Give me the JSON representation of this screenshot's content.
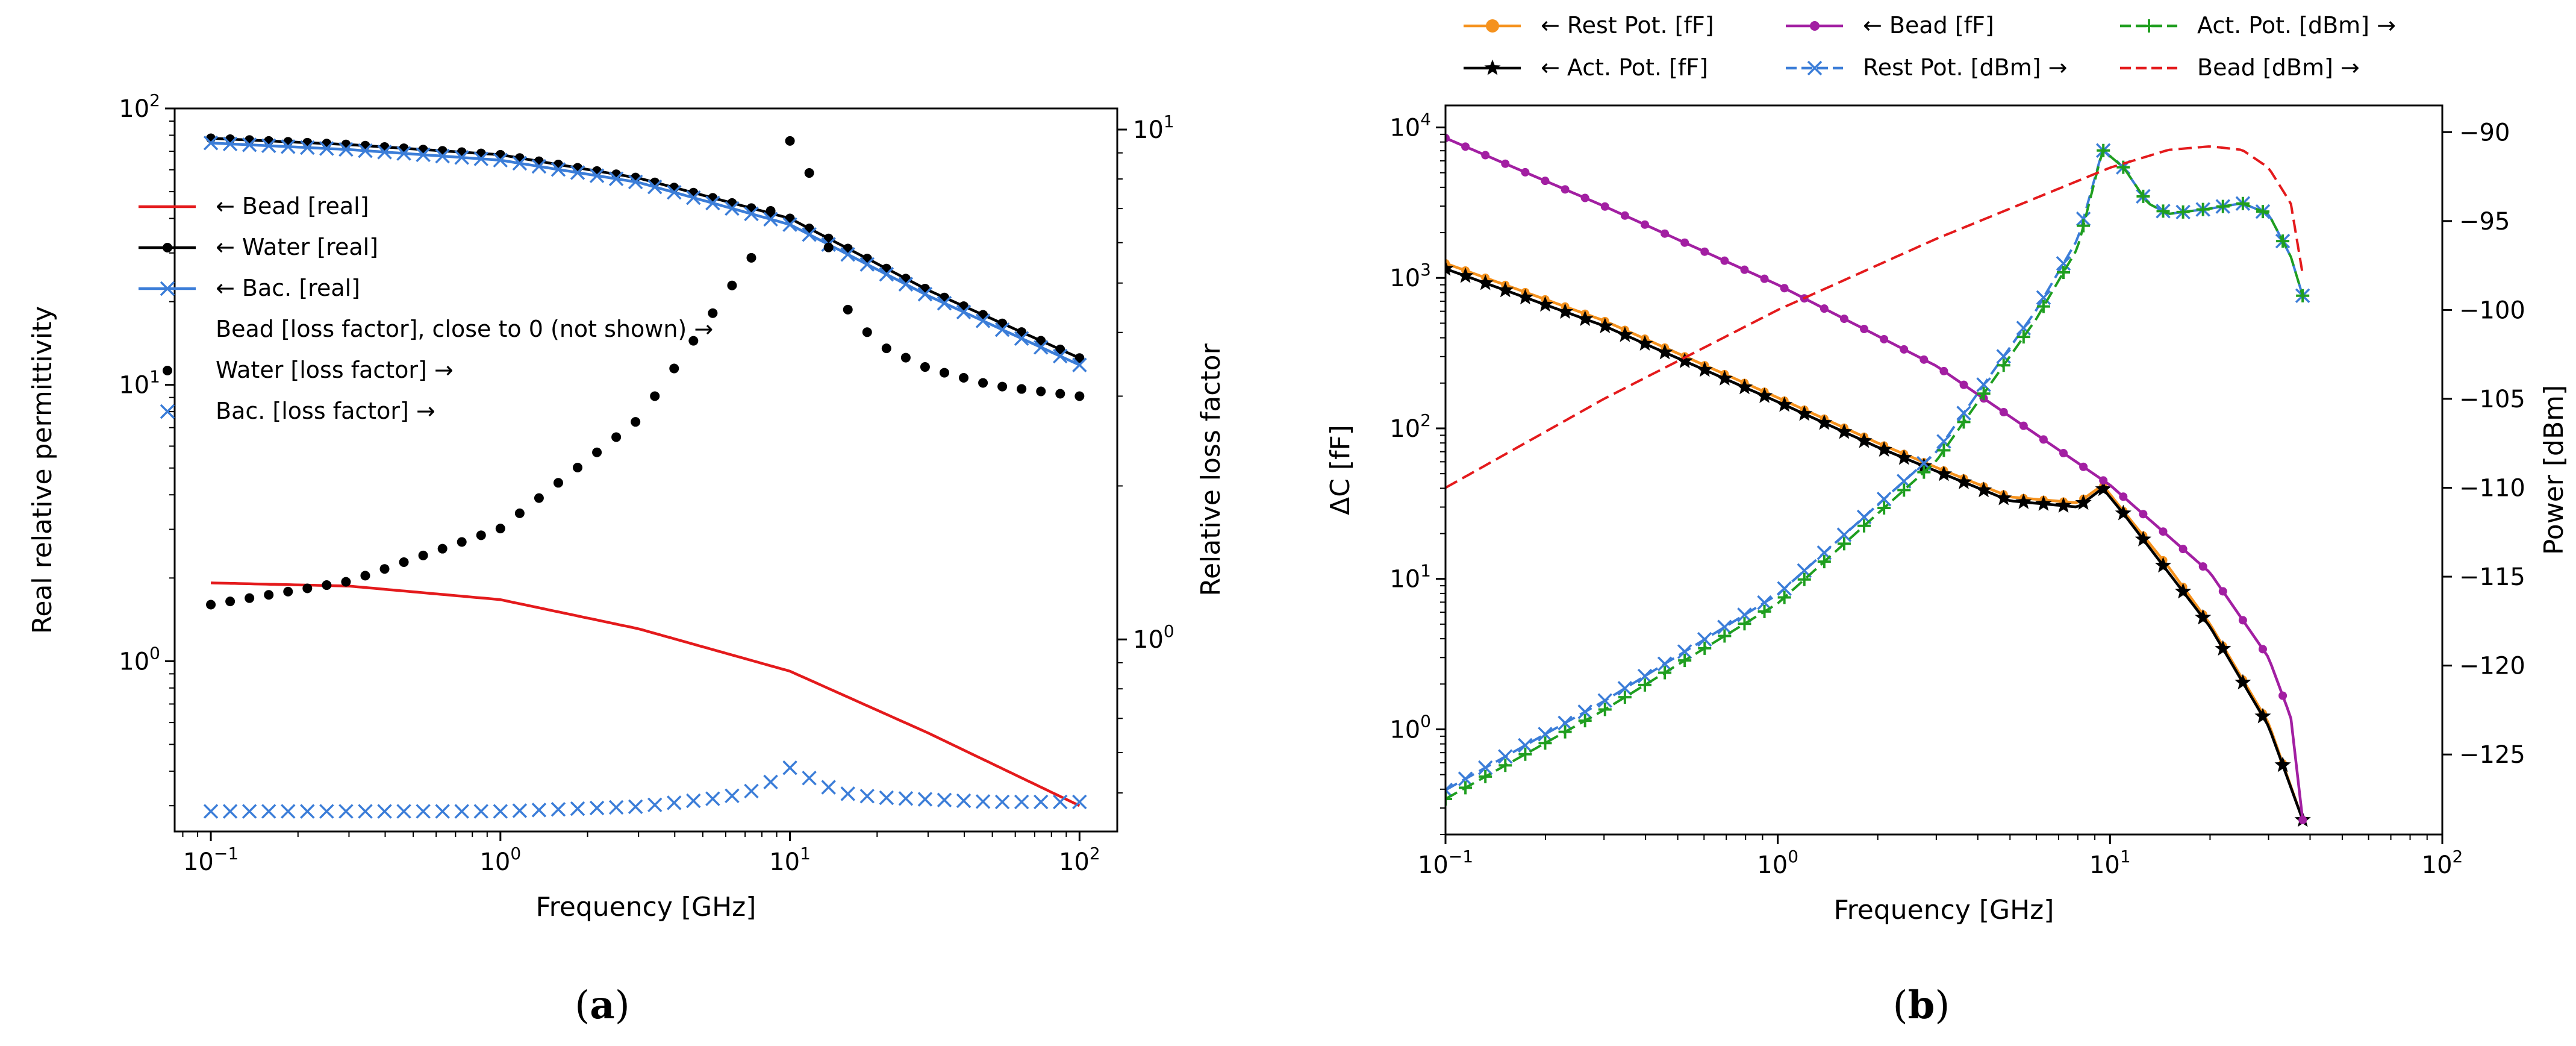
{
  "chart_data": [
    {
      "id": "a",
      "type": "line",
      "caption": "(a)",
      "xlabel": "Frequency [GHz]",
      "ylabel": "Real relative permittivity",
      "y2label": "Relative loss factor",
      "xscale": "log",
      "yscale": "log",
      "y2scale": "log",
      "xlim": [
        0.075,
        135
      ],
      "ylim": [
        0.242,
        100
      ],
      "y2lim": [
        0.42,
        11
      ],
      "xticks": [
        {
          "value": 0.1,
          "base": "10",
          "exp": "−1"
        },
        {
          "value": 1,
          "base": "10",
          "exp": "0"
        },
        {
          "value": 10,
          "base": "10",
          "exp": "1"
        },
        {
          "value": 100,
          "base": "10",
          "exp": "2"
        }
      ],
      "yticks": [
        {
          "value": 1,
          "base": "10",
          "exp": "0"
        },
        {
          "value": 10,
          "base": "10",
          "exp": "1"
        },
        {
          "value": 100,
          "base": "10",
          "exp": "2"
        }
      ],
      "y2ticks": [
        {
          "value": 1,
          "base": "10",
          "exp": "0"
        },
        {
          "value": 10,
          "base": "10",
          "exp": "1"
        }
      ],
      "legend_position": "center-left",
      "legend": [
        {
          "label": "← Bead [real]",
          "color": "#e41a1c",
          "marker": "none",
          "line": "solid"
        },
        {
          "label": "← Water [real]",
          "color": "#000000",
          "marker": "dot",
          "line": "solid"
        },
        {
          "label": "← Bac. [real]",
          "color": "#3b7dd8",
          "marker": "x",
          "line": "solid"
        },
        {
          "label": "Bead [loss factor], close to 0 (not shown) →",
          "color": "#000000",
          "marker": "none",
          "line": "none"
        },
        {
          "label": "Water [loss factor] →",
          "color": "#000000",
          "marker": "dot",
          "line": "none"
        },
        {
          "label": "Bac. [loss factor] →",
          "color": "#3b7dd8",
          "marker": "x",
          "line": "none"
        }
      ],
      "series": [
        {
          "name": "Bead [real]",
          "axis": "left",
          "color": "#e41a1c",
          "marker": "none",
          "line": "solid",
          "x": [
            0.1,
            0.3,
            1,
            3,
            10,
            30,
            100
          ],
          "y": [
            1.92,
            1.87,
            1.67,
            1.31,
            0.92,
            0.55,
            0.3
          ]
        },
        {
          "name": "Water [real]",
          "axis": "left",
          "color": "#000000",
          "marker": "dot",
          "line": "solid",
          "x": [
            0.1,
            0.3,
            1,
            3,
            10,
            30,
            100
          ],
          "y": [
            78,
            74,
            68,
            56,
            40,
            22,
            12.5
          ]
        },
        {
          "name": "Bac. [real]",
          "axis": "left",
          "color": "#3b7dd8",
          "marker": "x",
          "line": "solid",
          "x": [
            0.1,
            0.3,
            1,
            3,
            10,
            30,
            100
          ],
          "y": [
            75,
            71,
            65,
            54,
            38,
            21,
            11.8
          ]
        },
        {
          "name": "Water [loss factor]",
          "axis": "right",
          "color": "#000000",
          "marker": "dot",
          "line": "none",
          "x": [
            0.1,
            0.3,
            1,
            3,
            8,
            10,
            12,
            15,
            20,
            30,
            50,
            100
          ],
          "y": [
            1.17,
            1.3,
            1.65,
            2.7,
            6.0,
            9.5,
            8.0,
            4.6,
            3.8,
            3.4,
            3.15,
            3.0
          ]
        },
        {
          "name": "Bac. [loss factor]",
          "axis": "right",
          "color": "#3b7dd8",
          "marker": "x",
          "line": "none",
          "x": [
            0.1,
            1,
            3,
            6,
            8,
            10,
            12,
            15,
            20,
            50,
            100
          ],
          "y": [
            0.46,
            0.46,
            0.47,
            0.49,
            0.51,
            0.56,
            0.53,
            0.5,
            0.49,
            0.48,
            0.48
          ]
        }
      ]
    },
    {
      "id": "b",
      "type": "line",
      "caption": "(b)",
      "xlabel": "Frequency [GHz]",
      "ylabel": "ΔC [fF]",
      "y2label": "Power [dBm]",
      "xscale": "log",
      "yscale": "log",
      "y2scale": "linear",
      "xlim": [
        0.1,
        100
      ],
      "ylim": [
        0.2,
        14000
      ],
      "y2lim": [
        -129.5,
        -88.5
      ],
      "xticks": [
        {
          "value": 0.1,
          "base": "10",
          "exp": "−1"
        },
        {
          "value": 1,
          "base": "10",
          "exp": "0"
        },
        {
          "value": 10,
          "base": "10",
          "exp": "1"
        },
        {
          "value": 100,
          "base": "10",
          "exp": "2"
        }
      ],
      "yticks": [
        {
          "value": 1,
          "base": "10",
          "exp": "0"
        },
        {
          "value": 10,
          "base": "10",
          "exp": "1"
        },
        {
          "value": 100,
          "base": "10",
          "exp": "2"
        },
        {
          "value": 1000,
          "base": "10",
          "exp": "3"
        },
        {
          "value": 10000,
          "base": "10",
          "exp": "4"
        }
      ],
      "y2ticks": [
        -90,
        -95,
        -100,
        -105,
        -110,
        -115,
        -120,
        -125
      ],
      "y2ticklabels": [
        "−90",
        "−95",
        "−100",
        "−105",
        "−110",
        "−115",
        "−120",
        "−125"
      ],
      "legend_position": "above",
      "legend": [
        {
          "label": "← Rest Pot. [fF]",
          "color": "#f5921e",
          "marker": "dot",
          "line": "solid"
        },
        {
          "label": "← Bead [fF]",
          "color": "#a21fa2",
          "marker": "dot",
          "line": "solid"
        },
        {
          "label": "Act. Pot. [dBm] →",
          "color": "#1f9e1f",
          "marker": "plus",
          "line": "dashed"
        },
        {
          "label": "← Act. Pot. [fF]",
          "color": "#000000",
          "marker": "star",
          "line": "solid"
        },
        {
          "label": "Rest Pot. [dBm] →",
          "color": "#3b7dd8",
          "marker": "x",
          "line": "dashed"
        },
        {
          "label": "Bead [dBm] →",
          "color": "#e41a1c",
          "marker": "none",
          "line": "dashed"
        }
      ],
      "series": [
        {
          "name": "Rest Pot. [fF]",
          "axis": "left",
          "color": "#f5921e",
          "marker": "dot",
          "line": "solid",
          "x": [
            0.1,
            0.3,
            1,
            2,
            3,
            5,
            8,
            9.5,
            11,
            15,
            20,
            30,
            38
          ],
          "y": [
            1250,
            520,
            160,
            80,
            55,
            35,
            32,
            42,
            28,
            12,
            5,
            1.1,
            0.25
          ]
        },
        {
          "name": "Act. Pot. [fF]",
          "axis": "left",
          "color": "#000000",
          "marker": "star",
          "line": "solid",
          "x": [
            0.1,
            0.3,
            1,
            2,
            3,
            5,
            8,
            9.5,
            11,
            15,
            20,
            30,
            38
          ],
          "y": [
            1150,
            480,
            150,
            75,
            52,
            33,
            30,
            40,
            27,
            11,
            4.8,
            1.05,
            0.25
          ]
        },
        {
          "name": "Bead [fF]",
          "axis": "left",
          "color": "#a21fa2",
          "marker": "dot",
          "line": "solid",
          "x": [
            0.1,
            0.3,
            1,
            3,
            10,
            20,
            30,
            35,
            38
          ],
          "y": [
            8500,
            3000,
            900,
            260,
            42,
            11,
            3,
            1.2,
            0.25
          ]
        },
        {
          "name": "Rest Pot. [dBm]",
          "axis": "right",
          "color": "#3b7dd8",
          "marker": "x",
          "line": "dashed",
          "x": [
            0.1,
            0.3,
            1,
            3,
            6,
            8,
            9.5,
            11,
            13,
            15,
            20,
            25,
            30,
            35,
            38
          ],
          "y": [
            -127,
            -122,
            -116,
            -108,
            -100,
            -96,
            -91,
            -92,
            -94,
            -94.6,
            -94.3,
            -94,
            -94.6,
            -97,
            -99.2
          ]
        },
        {
          "name": "Act. Pot. [dBm]",
          "axis": "right",
          "color": "#1f9e1f",
          "marker": "plus",
          "line": "dashed",
          "x": [
            0.1,
            0.3,
            1,
            3,
            6,
            8,
            9.5,
            11,
            13,
            15,
            20,
            25,
            30,
            35,
            38
          ],
          "y": [
            -127.5,
            -122.5,
            -116.5,
            -108.5,
            -100.5,
            -96.5,
            -91,
            -92,
            -94,
            -94.6,
            -94.3,
            -94,
            -94.6,
            -97,
            -99.2
          ]
        },
        {
          "name": "Bead [dBm]",
          "axis": "right",
          "color": "#e41a1c",
          "marker": "none",
          "line": "dashed",
          "x": [
            0.1,
            0.3,
            1,
            3,
            10,
            15,
            20,
            25,
            30,
            35,
            38
          ],
          "y": [
            -110,
            -105,
            -100,
            -96,
            -92,
            -91,
            -90.8,
            -91,
            -92,
            -94,
            -98
          ]
        }
      ]
    }
  ]
}
